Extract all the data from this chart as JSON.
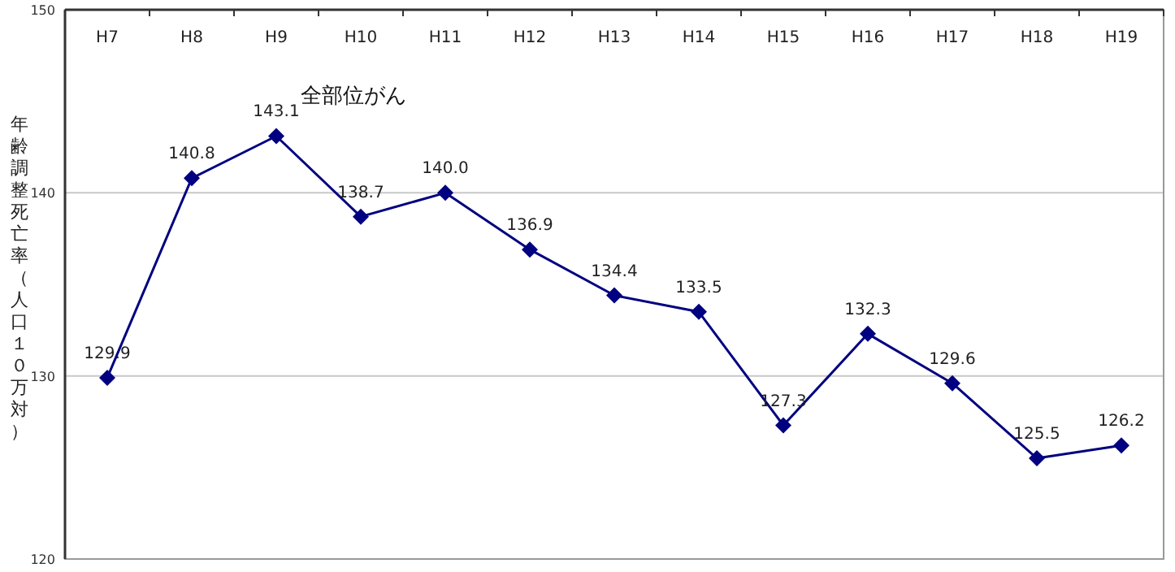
{
  "chart_data": {
    "type": "line",
    "categories": [
      "H7",
      "H8",
      "H9",
      "H10",
      "H11",
      "H12",
      "H13",
      "H14",
      "H15",
      "H16",
      "H17",
      "H18",
      "H19"
    ],
    "series": [
      {
        "color": "#000080",
        "values": [
          129.9,
          140.8,
          143.1,
          138.7,
          140.0,
          136.9,
          134.4,
          133.5,
          127.3,
          132.3,
          129.6,
          125.5,
          126.2
        ],
        "value_labels": [
          "129.9",
          "140.8",
          "143.1",
          "138.7",
          "140.0",
          "136.9",
          "134.4",
          "133.5",
          "127.3",
          "132.3",
          "129.6",
          "125.5",
          "126.2"
        ]
      }
    ],
    "ylabel": "年齢調整死亡率（人口１０万対）",
    "annotations": [
      "全部位がん"
    ],
    "ylim": [
      120,
      150
    ],
    "yticks": [
      120,
      130,
      140,
      150
    ],
    "grid": "y",
    "marker": "diamond",
    "line_style": "solid"
  }
}
